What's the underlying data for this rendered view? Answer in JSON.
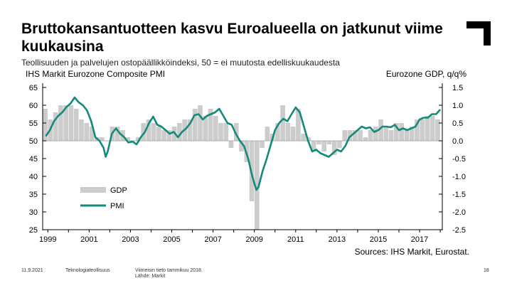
{
  "slide": {
    "title": "Bruttokansantuotteen kasvu Euroalueella on jatkunut viime kuukausina",
    "subtitle": "Teollisuuden ja palvelujen ostopäällikköindeksi, 50 = ei muutosta edelliskuukaudesta",
    "footer": {
      "date": "11.9.2021",
      "org": "Teknologiateollisuus",
      "note_line1": "Viimeisin tieto tammikuu 2018.",
      "note_line2": "Lähde: Markit",
      "page": "18"
    }
  },
  "colors": {
    "pmi": "#138a7a",
    "gdp": "#cccccc",
    "text": "#000000"
  },
  "chart_data": {
    "type": "bar",
    "title_left": "IHS Markit Eurozone Composite PMI",
    "title_right": "Eurozone GDP, q/q%",
    "source": "Sources: IHS Markit, Eurostat.",
    "x_range": [
      1998.75,
      2018.1
    ],
    "x_ticks": [
      "1999",
      "2001",
      "2003",
      "2005",
      "2007",
      "2009",
      "2011",
      "2013",
      "2015",
      "2017"
    ],
    "x_tick_values": [
      1999,
      2001,
      2003,
      2005,
      2007,
      2009,
      2011,
      2013,
      2015,
      2017
    ],
    "y_left": {
      "range": [
        25,
        65
      ],
      "ticks": [
        "65",
        "60",
        "55",
        "50",
        "45",
        "40",
        "35",
        "30",
        "25"
      ],
      "tick_values": [
        65,
        60,
        55,
        50,
        45,
        40,
        35,
        30,
        25
      ]
    },
    "y_right": {
      "range": [
        -2.5,
        1.5
      ],
      "ticks": [
        "1.5",
        "1.0",
        "0.5",
        "0.0",
        "-0.5",
        "-1.0",
        "-1.5",
        "-2.0",
        "-2.5"
      ],
      "tick_values": [
        1.5,
        1.0,
        0.5,
        0.0,
        -0.5,
        -1.0,
        -1.5,
        -2.0,
        -2.5
      ]
    },
    "legend": {
      "position": "lower-left",
      "gdp_label": "GDP",
      "pmi_label": "PMI"
    },
    "series": [
      {
        "name": "GDP",
        "kind": "bar",
        "axis": "right",
        "x": [
          1998.875,
          1999.125,
          1999.375,
          1999.625,
          1999.875,
          2000.125,
          2000.375,
          2000.625,
          2000.875,
          2001.125,
          2001.375,
          2001.625,
          2001.875,
          2002.125,
          2002.375,
          2002.625,
          2002.875,
          2003.125,
          2003.375,
          2003.625,
          2003.875,
          2004.125,
          2004.375,
          2004.625,
          2004.875,
          2005.125,
          2005.375,
          2005.625,
          2005.875,
          2006.125,
          2006.375,
          2006.625,
          2006.875,
          2007.125,
          2007.375,
          2007.625,
          2007.875,
          2008.125,
          2008.375,
          2008.625,
          2008.875,
          2009.125,
          2009.375,
          2009.625,
          2009.875,
          2010.125,
          2010.375,
          2010.625,
          2010.875,
          2011.125,
          2011.375,
          2011.625,
          2011.875,
          2012.125,
          2012.375,
          2012.625,
          2012.875,
          2013.125,
          2013.375,
          2013.625,
          2013.875,
          2014.125,
          2014.375,
          2014.625,
          2014.875,
          2015.125,
          2015.375,
          2015.625,
          2015.875,
          2016.125,
          2016.375,
          2016.625,
          2016.875,
          2017.125,
          2017.375,
          2017.625,
          2017.875
        ],
        "values": [
          0.9,
          0.6,
          0.8,
          1.0,
          1.0,
          1.0,
          0.9,
          0.6,
          0.5,
          0.4,
          0.1,
          0.1,
          0.0,
          0.4,
          0.4,
          0.3,
          0.1,
          0.0,
          0.1,
          0.5,
          0.6,
          0.5,
          0.4,
          0.3,
          0.3,
          0.4,
          0.5,
          0.6,
          0.6,
          0.9,
          1.0,
          0.7,
          0.9,
          0.7,
          0.5,
          0.5,
          -0.2,
          0.5,
          -0.3,
          -0.6,
          -1.7,
          -2.5,
          -0.2,
          0.4,
          0.2,
          0.5,
          1.0,
          0.5,
          0.4,
          0.9,
          0.2,
          0.1,
          -0.3,
          -0.1,
          -0.3,
          -0.1,
          -0.4,
          -0.2,
          0.3,
          0.3,
          0.3,
          0.3,
          0.1,
          0.3,
          0.4,
          0.6,
          0.4,
          0.3,
          0.5,
          0.5,
          0.3,
          0.4,
          0.6,
          0.6,
          0.7,
          0.7,
          0.6
        ]
      },
      {
        "name": "PMI",
        "kind": "line",
        "axis": "left",
        "x": [
          1998.9,
          1999.1,
          1999.3,
          1999.5,
          1999.7,
          1999.9,
          2000.1,
          2000.3,
          2000.5,
          2000.7,
          2000.9,
          2001.1,
          2001.3,
          2001.5,
          2001.7,
          2001.8,
          2001.9,
          2002.1,
          2002.3,
          2002.5,
          2002.7,
          2002.9,
          2003.1,
          2003.3,
          2003.5,
          2003.7,
          2003.9,
          2004.1,
          2004.3,
          2004.5,
          2004.7,
          2004.9,
          2005.1,
          2005.3,
          2005.5,
          2005.7,
          2005.9,
          2006.1,
          2006.3,
          2006.5,
          2006.7,
          2006.9,
          2007.1,
          2007.3,
          2007.5,
          2007.7,
          2007.9,
          2008.1,
          2008.3,
          2008.5,
          2008.7,
          2008.9,
          2009.0,
          2009.1,
          2009.2,
          2009.4,
          2009.6,
          2009.8,
          2010.0,
          2010.2,
          2010.4,
          2010.6,
          2010.8,
          2011.0,
          2011.2,
          2011.4,
          2011.6,
          2011.8,
          2012.0,
          2012.2,
          2012.4,
          2012.6,
          2012.8,
          2013.0,
          2013.2,
          2013.4,
          2013.6,
          2013.8,
          2014.0,
          2014.2,
          2014.4,
          2014.6,
          2014.8,
          2015.0,
          2015.2,
          2015.4,
          2015.6,
          2015.8,
          2016.0,
          2016.2,
          2016.4,
          2016.6,
          2016.8,
          2017.0,
          2017.2,
          2017.4,
          2017.6,
          2017.8,
          2018.0
        ],
        "values": [
          51.3,
          53,
          55.5,
          57,
          58,
          59.5,
          60.5,
          62.2,
          60.8,
          60,
          58.5,
          55.5,
          51,
          50,
          48,
          45.5,
          47,
          52,
          53.5,
          52,
          51,
          49.5,
          49.8,
          49,
          51,
          52.5,
          55,
          56.8,
          54.5,
          54,
          53,
          52,
          52.5,
          51,
          52.5,
          53.5,
          55,
          57.2,
          57.5,
          56,
          57,
          57.5,
          58,
          59,
          57,
          55,
          54.5,
          52,
          50,
          48.5,
          45,
          40,
          38,
          36.2,
          37,
          41.5,
          45,
          49,
          53,
          55,
          56.2,
          55.5,
          57.5,
          59.4,
          58,
          54,
          50,
          47,
          47.5,
          46.5,
          46,
          45.5,
          46.5,
          47.5,
          47,
          48.5,
          51,
          52,
          53,
          54,
          53.5,
          53.8,
          52.5,
          53,
          54,
          54,
          53.8,
          54.5,
          53,
          53.5,
          53,
          53.5,
          54,
          56,
          56.5,
          56.5,
          57.5,
          57.5,
          58.8
        ]
      }
    ]
  }
}
